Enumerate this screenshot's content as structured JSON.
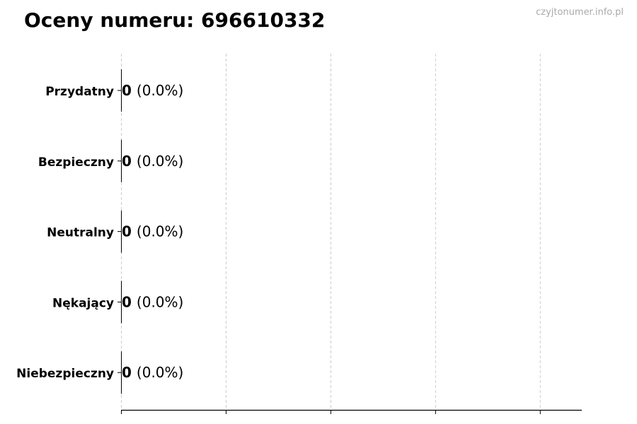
{
  "title": "Oceny numeru: 696610332",
  "watermark": "czyjtonumer.info.pl",
  "chart_data": {
    "type": "bar",
    "orientation": "horizontal",
    "title": "Oceny numeru: 696610332",
    "xlabel": "",
    "ylabel": "",
    "categories": [
      "Przydatny",
      "Bezpieczny",
      "Neutralny",
      "Nękający",
      "Niebezpieczny"
    ],
    "values": [
      0,
      0,
      0,
      0,
      0
    ],
    "data_labels": [
      {
        "count": "0",
        "percent": "(0.0%)"
      },
      {
        "count": "0",
        "percent": "(0.0%)"
      },
      {
        "count": "0",
        "percent": "(0.0%)"
      },
      {
        "count": "0",
        "percent": "(0.0%)"
      },
      {
        "count": "0",
        "percent": "(0.0%)"
      }
    ],
    "xlim": [
      0,
      4.4
    ],
    "x_ticks": [
      0,
      1,
      2,
      3,
      4
    ],
    "x_tick_labels_shown": false,
    "grid": "x, dashed",
    "bar_edge_color": "#000000",
    "grid_color": "#cccccc"
  }
}
